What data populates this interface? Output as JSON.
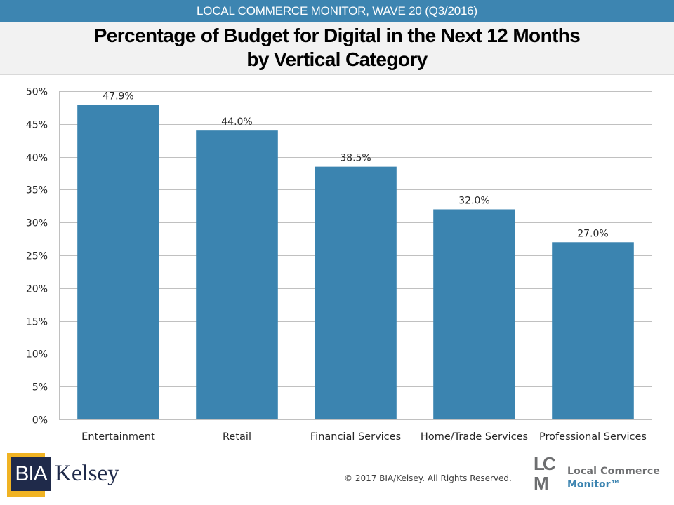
{
  "header": {
    "banner": "LOCAL COMMERCE MONITOR, WAVE 20 (Q3/2016)",
    "title_line1": "Percentage of Budget for Digital in the Next 12 Months",
    "title_line2": "by Vertical Category"
  },
  "colors": {
    "banner": "#3d85b1",
    "bar": "#3b84b0",
    "gridline": "#c0c0c0",
    "title_bg": "#f2f2f2"
  },
  "chart_data": {
    "type": "bar",
    "title": "Percentage of Budget for Digital in the Next 12 Months by Vertical Category",
    "xlabel": "",
    "ylabel": "",
    "categories": [
      "Entertainment",
      "Retail",
      "Financial Services",
      "Home/Trade Services",
      "Professional Services"
    ],
    "values": [
      47.9,
      44.0,
      38.5,
      32.0,
      27.0
    ],
    "data_labels": [
      "47.9%",
      "44.0%",
      "38.5%",
      "32.0%",
      "27.0%"
    ],
    "ylim": [
      0,
      50
    ],
    "yticks": [
      0,
      5,
      10,
      15,
      20,
      25,
      30,
      35,
      40,
      45,
      50
    ],
    "ytick_labels": [
      "0%",
      "5%",
      "10%",
      "15%",
      "20%",
      "25%",
      "30%",
      "35%",
      "40%",
      "45%",
      "50%"
    ],
    "grid": true,
    "legend": "none"
  },
  "footer": {
    "copyright": "© 2017  BIA/Kelsey.  All Rights Reserved.",
    "bia_logo": {
      "left": "BIA",
      "right": "Kelsey"
    },
    "lcm_logo": {
      "letters": "LCM",
      "line1": "Local Commerce",
      "line2": "Monitor™"
    }
  }
}
